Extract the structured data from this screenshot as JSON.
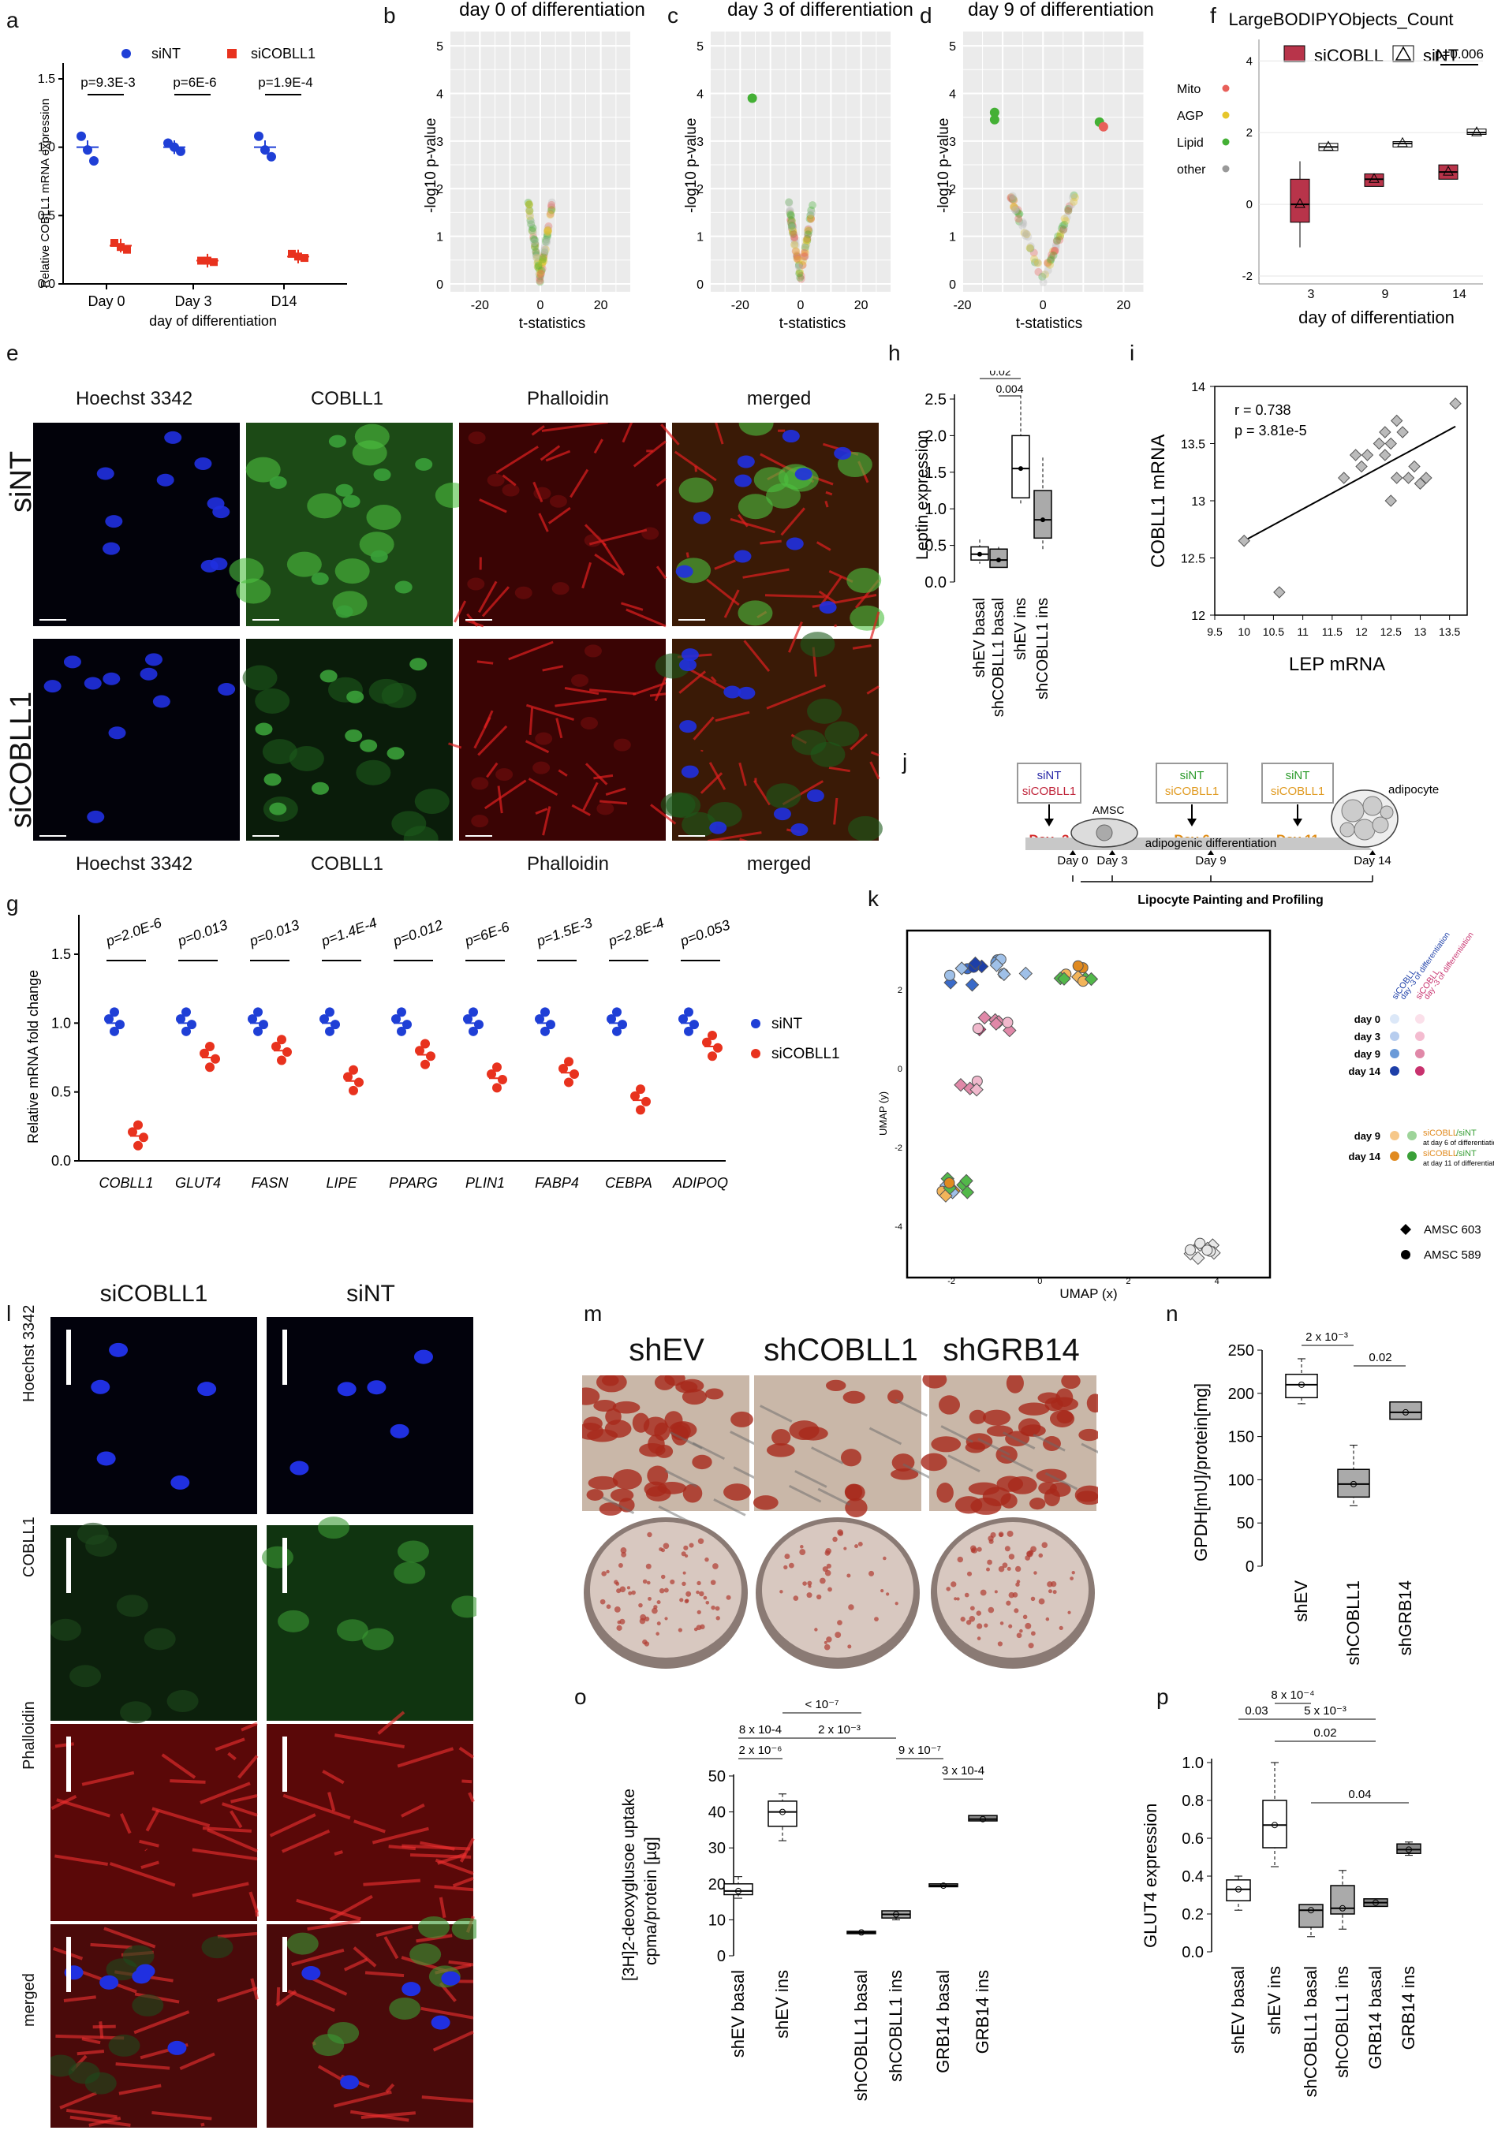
{
  "letters": [
    "a",
    "b",
    "c",
    "d",
    "e",
    "f",
    "g",
    "h",
    "i",
    "j",
    "k",
    "l",
    "m",
    "n",
    "o",
    "p"
  ],
  "panel_a": {
    "legend": [
      "siNT",
      "siCOBLL1"
    ],
    "ylabel": "Relative COBLL1 mRNA expression",
    "xlabel": "day of differentiation",
    "categories": [
      "Day 0",
      "Day 3",
      "D14"
    ],
    "yticks": [
      "0.0",
      "0.5",
      "1.0",
      "1.5"
    ],
    "pvalues": [
      "p=9.3E-3",
      "p=6E-6",
      "p=1.9E-4"
    ],
    "colors": {
      "siNT": "#1f3fd6",
      "siCOBLL1": "#e8321e"
    }
  },
  "volcano": [
    {
      "title": "day 0 of differentiation",
      "xlabel": "t-statistics",
      "ylabel": "-log10 p-value",
      "xticks": [
        "-20",
        "0",
        "20"
      ],
      "yticks": [
        "0",
        "1",
        "2",
        "3",
        "4",
        "5"
      ]
    },
    {
      "title": "day 3 of differentiation",
      "xlabel": "t-statistics",
      "ylabel": "-log10 p-value",
      "xticks": [
        "-20",
        "0",
        "20"
      ],
      "yticks": [
        "0",
        "1",
        "2",
        "3",
        "4",
        "5"
      ]
    },
    {
      "title": "day 9 of differentiation",
      "xlabel": "t-statistics",
      "ylabel": "-log10 p-value",
      "xticks": [
        "-20",
        "0",
        "20"
      ],
      "yticks": [
        "0",
        "1",
        "2",
        "3",
        "4",
        "5"
      ]
    }
  ],
  "panel_f": {
    "title": "LargeBODIPYObjects_Count",
    "legend": [
      "siCOBLL",
      "siNT"
    ],
    "legend_left": [
      "Mito",
      "AGP",
      "Lipid",
      "other"
    ],
    "legend_left_colors": [
      "#e8605a",
      "#e6c62c",
      "#44b035",
      "#999999"
    ],
    "xlabel": "day of differentiation",
    "categories": [
      "3",
      "9",
      "14"
    ],
    "yticks": [
      "-2",
      "0",
      "2",
      "4"
    ],
    "pvalue": "p=0.006"
  },
  "panel_e": {
    "headers": [
      "Hoechst 3342",
      "COBLL1",
      "Phalloidin",
      "merged"
    ],
    "rows": [
      "siNT",
      "siCOBLL1"
    ]
  },
  "panel_h": {
    "ylabel": "Leptin expression",
    "yticks": [
      "0.0",
      "0.5",
      "1.0",
      "1.5",
      "2.0",
      "2.5"
    ],
    "categories": [
      "shEV basal",
      "shCOBLL1 basal",
      "shEV ins",
      "shCOBLL1 ins"
    ],
    "pvalues": [
      "0.02",
      "0.004"
    ]
  },
  "panel_i": {
    "annot": [
      "r = 0.738",
      "p = 3.81e-5"
    ],
    "xlabel": "LEP mRNA",
    "ylabel": "COBLL1 mRNA",
    "xticks": [
      "9.5",
      "10",
      "10.5",
      "11",
      "11.5",
      "12",
      "12.5",
      "13",
      "13.5"
    ],
    "yticks": [
      "12",
      "12.5",
      "13",
      "13.5",
      "14"
    ]
  },
  "panel_j": {
    "boxes": [
      {
        "l1": "siNT",
        "l2": "siCOBLL1",
        "day": "Day -3"
      },
      {
        "l1": "siNT",
        "l2": "siCOBLL1",
        "day": "Day 6"
      },
      {
        "l1": "siNT",
        "l2": "siCOBLL1",
        "day": "Day 11"
      }
    ],
    "amsc": "AMSC",
    "adipocyte": "adipocyte",
    "bar": "adipogenic differentiation",
    "days": [
      "Day 0",
      "Day 3",
      "Day 9",
      "Day 14"
    ],
    "footer": "Lipocyte Painting and Profiling"
  },
  "panel_k": {
    "xlabel": "UMAP (x)",
    "ylabel": "UMAP (y)",
    "xticks": [
      "-2",
      "0",
      "2",
      "4"
    ],
    "yticks": [
      "-4",
      "-2",
      "0",
      "2"
    ],
    "leg_col1": "siCOBLL",
    "leg_col1b": "day -3 of differentiation",
    "leg_col2": "siCOBLL",
    "leg_col2b": "day -3 of differentiation",
    "days": [
      "day 0",
      "day 3",
      "day 9",
      "day 14"
    ],
    "days2": [
      "day 9",
      "day 14"
    ],
    "note1": "siCOBLL",
    "note1b": "at day 6 of differentiation",
    "note1c": "/siNT",
    "note2": "siCOBLL",
    "note2b": "at day 11 of differentiation",
    "note2c": "/siNT",
    "shape_labels": [
      "AMSC 603",
      "AMSC 589"
    ]
  },
  "panel_g": {
    "ylabel": "Relative mRNA fold change",
    "yticks": [
      "0.0",
      "0.5",
      "1.0",
      "1.5"
    ],
    "genes": [
      "COBLL1",
      "GLUT4",
      "FASN",
      "LIPE",
      "PPARG",
      "PLIN1",
      "FABP4",
      "CEBPA",
      "ADIPOQ"
    ],
    "pvalues": [
      "p=2.0E-6",
      "p=0.013",
      "p=0.013",
      "p=1.4E-4",
      "p=0.012",
      "p=6E-6",
      "p=1.5E-3",
      "p=2.8E-4",
      "p=0.053"
    ],
    "legend": [
      "siNT",
      "siCOBLL1"
    ]
  },
  "panel_l": {
    "headers": [
      "siCOBLL1",
      "siNT"
    ],
    "rows": [
      "Hoechst 3342",
      "COBLL1",
      "Phalloidin",
      "merged"
    ]
  },
  "panel_m": {
    "headers": [
      "shEV",
      "shCOBLL1",
      "shGRB14"
    ]
  },
  "panel_n": {
    "ylabel": "GPDH[mU]/protein[mg]",
    "yticks": [
      "0",
      "50",
      "100",
      "150",
      "200",
      "250"
    ],
    "categories": [
      "shEV",
      "shCOBLL1",
      "shGRB14"
    ],
    "pvalues": [
      "2 x 10⁻³",
      "0.02"
    ]
  },
  "panel_o": {
    "ylabel1": "[3H]2-deoxyglusoe uptake",
    "ylabel2": "cpma/protein [µg]",
    "yticks": [
      "0",
      "10",
      "20",
      "30",
      "40",
      "50"
    ],
    "categories": [
      "shEV basal",
      "shEV ins",
      "shCOBLL1 basal",
      "shCOBLL1 ins",
      "GRB14 basal",
      "GRB14 ins"
    ],
    "pvalues": [
      "< 10⁻⁷",
      "8 x 10-4",
      "2 x 10⁻³",
      "2 x 10⁻⁶",
      "9 x 10⁻⁷",
      "3 x 10-4"
    ]
  },
  "panel_p": {
    "ylabel": "GLUT4 expression",
    "yticks": [
      "0.0",
      "0.2",
      "0.4",
      "0.6",
      "0.8",
      "1.0"
    ],
    "categories": [
      "shEV basal",
      "shEV ins",
      "shCOBLL1 basal",
      "shCOBLL1 ins",
      "GRB14 basal",
      "GRB14 ins"
    ],
    "pvalues": [
      "0.03",
      "8 x 10⁻⁴",
      "5 x 10⁻³",
      "0.02",
      "0.04"
    ]
  },
  "chart_data": [
    {
      "panel": "a",
      "type": "scatter",
      "categories": [
        "Day 0",
        "Day 3",
        "D14"
      ],
      "series": [
        {
          "name": "siNT",
          "means": [
            1.0,
            1.0,
            1.0
          ],
          "points": [
            [
              1.08,
              0.98,
              0.9
            ],
            [
              1.03,
              1.0,
              0.97
            ],
            [
              1.08,
              0.98,
              0.93
            ]
          ]
        },
        {
          "name": "siCOBLL1",
          "means": [
            0.28,
            0.17,
            0.2
          ],
          "points": [
            [
              0.3,
              0.27,
              0.25
            ],
            [
              0.17,
              0.17,
              0.16
            ],
            [
              0.22,
              0.2,
              0.19
            ]
          ]
        }
      ],
      "ylim": [
        0,
        1.5
      ]
    },
    {
      "panel": "b",
      "type": "scatter",
      "title": "day 0 of differentiation",
      "xlim": [
        -30,
        30
      ],
      "ylim": [
        0,
        5
      ]
    },
    {
      "panel": "c",
      "type": "scatter",
      "title": "day 3 of differentiation",
      "xlim": [
        -30,
        30
      ],
      "ylim": [
        0,
        5
      ],
      "highlight": [
        {
          "x": -16,
          "y": 3.9,
          "group": "Lipid"
        }
      ]
    },
    {
      "panel": "d",
      "type": "scatter",
      "title": "day 9 of differentiation",
      "xlim": [
        -20,
        25
      ],
      "ylim": [
        0,
        5
      ],
      "highlight": [
        {
          "x": -12,
          "y": 3.6,
          "group": "Lipid"
        },
        {
          "x": -12,
          "y": 3.45,
          "group": "Lipid"
        },
        {
          "x": 14,
          "y": 3.4,
          "group": "Lipid"
        },
        {
          "x": 15,
          "y": 3.3,
          "group": "Mito"
        }
      ]
    },
    {
      "panel": "f",
      "type": "box",
      "title": "LargeBODIPYObjects_Count",
      "categories": [
        "3",
        "9",
        "14"
      ],
      "series": [
        {
          "name": "siCOBLL",
          "median": [
            0.0,
            0.7,
            0.9
          ],
          "q1": [
            -0.5,
            0.5,
            0.7
          ],
          "q3": [
            0.7,
            0.85,
            1.1
          ],
          "min": [
            -1.2,
            0.5,
            0.7
          ],
          "max": [
            1.2,
            0.85,
            1.1
          ]
        },
        {
          "name": "siNT",
          "median": [
            1.6,
            1.7,
            2.0
          ],
          "q1": [
            1.5,
            1.6,
            1.95
          ],
          "q3": [
            1.7,
            1.75,
            2.1
          ],
          "min": [
            1.5,
            1.6,
            1.95
          ],
          "max": [
            1.7,
            1.75,
            2.1
          ]
        }
      ],
      "ylim": [
        -2,
        4
      ]
    },
    {
      "panel": "g",
      "type": "scatter",
      "categories": [
        "COBLL1",
        "GLUT4",
        "FASN",
        "LIPE",
        "PPARG",
        "PLIN1",
        "FABP4",
        "CEBPA",
        "ADIPOQ"
      ],
      "series": [
        {
          "name": "siNT",
          "values": [
            1.0,
            1.0,
            1.0,
            1.0,
            1.0,
            1.0,
            1.0,
            1.0,
            1.0
          ]
        },
        {
          "name": "siCOBLL1",
          "values": [
            0.18,
            0.75,
            0.8,
            0.58,
            0.77,
            0.6,
            0.64,
            0.44,
            0.83
          ]
        }
      ],
      "ylim": [
        0,
        1.5
      ]
    },
    {
      "panel": "h",
      "type": "box",
      "categories": [
        "shEV basal",
        "shCOBLL1 basal",
        "shEV ins",
        "shCOBLL1 ins"
      ],
      "median": [
        0.38,
        0.3,
        1.55,
        0.85
      ],
      "q1": [
        0.3,
        0.2,
        1.15,
        0.6
      ],
      "q3": [
        0.48,
        0.45,
        2.0,
        1.25
      ],
      "min": [
        0.25,
        0.18,
        1.05,
        0.45
      ],
      "max": [
        0.58,
        0.48,
        2.55,
        1.7
      ],
      "ylim": [
        0,
        2.5
      ]
    },
    {
      "panel": "i",
      "type": "scatter",
      "x": [
        10.0,
        10.6,
        11.7,
        11.9,
        12.0,
        12.1,
        12.3,
        12.4,
        12.4,
        12.5,
        12.5,
        12.6,
        12.6,
        12.7,
        12.8,
        12.9,
        13.0,
        13.1,
        13.6
      ],
      "y": [
        12.65,
        12.2,
        13.2,
        13.4,
        13.3,
        13.4,
        13.5,
        13.6,
        13.4,
        13.5,
        13.0,
        13.2,
        13.7,
        13.6,
        13.2,
        13.3,
        13.15,
        13.2,
        13.85
      ],
      "fit": {
        "x": [
          10.0,
          13.6
        ],
        "y": [
          12.65,
          13.65
        ]
      },
      "xlim": [
        9.5,
        13.8
      ],
      "ylim": [
        12,
        14
      ]
    },
    {
      "panel": "n",
      "type": "box",
      "categories": [
        "shEV",
        "shCOBLL1",
        "shGRB14"
      ],
      "median": [
        210,
        95,
        178
      ],
      "q1": [
        195,
        80,
        170
      ],
      "q3": [
        222,
        112,
        190
      ],
      "min": [
        188,
        70,
        170
      ],
      "max": [
        240,
        140,
        190
      ],
      "ylim": [
        0,
        250
      ]
    },
    {
      "panel": "o",
      "type": "box",
      "categories": [
        "shEV basal",
        "shEV ins",
        "shCOBLL1 basal",
        "shCOBLL1 ins",
        "GRB14 basal",
        "GRB14 ins"
      ],
      "median": [
        18,
        40,
        6.5,
        11.5,
        19.5,
        38
      ],
      "q1": [
        17,
        36,
        6.3,
        10.5,
        19.2,
        37.5
      ],
      "q3": [
        20,
        43,
        6.8,
        12.5,
        20,
        39
      ],
      "min": [
        16,
        32,
        6.3,
        10,
        19.2,
        37.5
      ],
      "max": [
        22,
        45,
        6.8,
        12.5,
        20,
        39
      ],
      "ylim": [
        0,
        50
      ]
    },
    {
      "panel": "p",
      "type": "box",
      "categories": [
        "shEV basal",
        "shEV ins",
        "shCOBLL1 basal",
        "shCOBLL1 ins",
        "GRB14 basal",
        "GRB14 ins"
      ],
      "median": [
        0.33,
        0.67,
        0.22,
        0.23,
        0.26,
        0.54
      ],
      "q1": [
        0.27,
        0.55,
        0.13,
        0.2,
        0.24,
        0.52
      ],
      "q3": [
        0.38,
        0.8,
        0.25,
        0.35,
        0.28,
        0.57
      ],
      "min": [
        0.22,
        0.45,
        0.08,
        0.12,
        0.24,
        0.51
      ],
      "max": [
        0.4,
        1.0,
        0.25,
        0.43,
        0.28,
        0.58
      ],
      "ylim": [
        0,
        1.0
      ]
    }
  ]
}
